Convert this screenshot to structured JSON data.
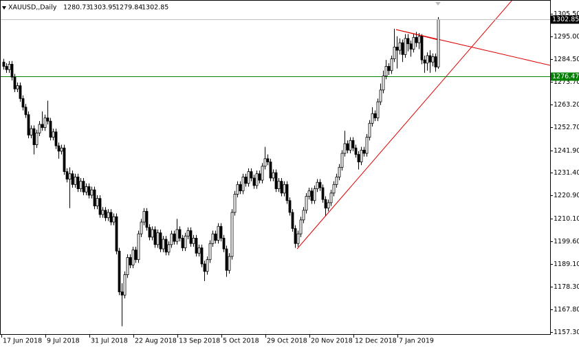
{
  "chart_data": {
    "type": "candlestick",
    "symbol": "XAUUSD,,Daily",
    "ylim": [
      1156.0,
      1311.9
    ],
    "yticks": [
      {
        "value": 1305.5,
        "label": "1305.50"
      },
      {
        "value": 1295.0,
        "label": "1295.00"
      },
      {
        "value": 1284.5,
        "label": "1284.50"
      },
      {
        "value": 1273.7,
        "label": "1273.70"
      },
      {
        "value": 1263.2,
        "label": "1263.20"
      },
      {
        "value": 1252.7,
        "label": "1252.70"
      },
      {
        "value": 1241.9,
        "label": "1241.90"
      },
      {
        "value": 1231.4,
        "label": "1231.40"
      },
      {
        "value": 1220.9,
        "label": "1220.90"
      },
      {
        "value": 1210.1,
        "label": "1210.10"
      },
      {
        "value": 1199.6,
        "label": "1199.60"
      },
      {
        "value": 1189.1,
        "label": "1189.10"
      },
      {
        "value": 1178.3,
        "label": "1178.30"
      },
      {
        "value": 1167.8,
        "label": "1167.80"
      },
      {
        "value": 1157.3,
        "label": "1157.30"
      }
    ],
    "hline": {
      "value": 1276.47,
      "color": "#008000"
    },
    "bull_color": "#ffffff",
    "bear_color": "#000000",
    "categories": [
      "17 Jun 2018",
      null,
      null,
      null,
      null,
      null,
      null,
      null,
      null,
      null,
      null,
      null,
      null,
      null,
      null,
      null,
      "9 Jul 2018",
      null,
      null,
      null,
      null,
      null,
      null,
      null,
      null,
      null,
      null,
      null,
      null,
      null,
      null,
      null,
      "31 Jul 2018",
      null,
      null,
      null,
      null,
      null,
      null,
      null,
      null,
      null,
      null,
      null,
      null,
      null,
      null,
      null,
      "22 Aug 2018",
      null,
      null,
      null,
      null,
      null,
      null,
      null,
      null,
      null,
      null,
      null,
      null,
      null,
      null,
      null,
      "13 Sep 2018",
      null,
      null,
      null,
      null,
      null,
      null,
      null,
      null,
      null,
      null,
      null,
      null,
      null,
      null,
      null,
      "5 Oct 2018",
      null,
      null,
      null,
      null,
      null,
      null,
      null,
      null,
      null,
      null,
      null,
      null,
      null,
      null,
      null,
      "29 Oct 2018",
      null,
      null,
      null,
      null,
      null,
      null,
      null,
      null,
      null,
      null,
      null,
      null,
      null,
      null,
      null,
      "20 Nov 2018",
      null,
      null,
      null,
      null,
      null,
      null,
      null,
      null,
      null,
      null,
      null,
      null,
      null,
      null,
      null,
      "12 Dec 2018",
      null,
      null,
      null,
      null,
      null,
      null,
      null,
      null,
      null,
      null,
      null,
      null,
      null,
      null,
      null,
      "7 Jan 2019",
      null,
      null,
      null,
      null,
      null,
      null,
      null,
      null,
      null,
      null,
      null,
      null,
      null,
      null
    ],
    "candles": [
      [
        1283.0,
        1284.5,
        1279.5,
        1281.0
      ],
      [
        1281.0,
        1282.5,
        1278.0,
        1279.5
      ],
      [
        1279.5,
        1283.5,
        1278.0,
        1282.0
      ],
      [
        1282.0,
        1283.5,
        1274.5,
        1276.0
      ],
      [
        1276.0,
        1277.5,
        1269.0,
        1270.5
      ],
      [
        1270.5,
        1273.5,
        1269.0,
        1272.0
      ],
      [
        1272.0,
        1273.5,
        1264.5,
        1266.0
      ],
      [
        1266.0,
        1267.5,
        1260.5,
        1262.0
      ],
      [
        1262.0,
        1263.5,
        1257.0,
        1258.5
      ],
      [
        1258.5,
        1260.0,
        1247.5,
        1249.0
      ],
      [
        1249.0,
        1253.5,
        1247.5,
        1252.0
      ],
      [
        1252.0,
        1253.5,
        1240.0,
        1244.5
      ],
      [
        1244.5,
        1251.5,
        1243.0,
        1250.0
      ],
      [
        1250.0,
        1255.5,
        1248.5,
        1254.0
      ],
      [
        1254.0,
        1260.0,
        1251.0,
        1252.5
      ],
      [
        1252.5,
        1258.5,
        1251.0,
        1257.0
      ],
      [
        1257.0,
        1265.0,
        1254.0,
        1255.5
      ],
      [
        1255.5,
        1257.0,
        1246.5,
        1248.0
      ],
      [
        1248.0,
        1252.0,
        1246.5,
        1250.5
      ],
      [
        1250.5,
        1252.0,
        1242.5,
        1244.0
      ],
      [
        1244.0,
        1245.5,
        1238.0,
        1241.5
      ],
      [
        1241.5,
        1244.5,
        1240.0,
        1243.0
      ],
      [
        1243.0,
        1244.5,
        1230.5,
        1232.0
      ],
      [
        1232.0,
        1233.5,
        1227.0,
        1228.5
      ],
      [
        1228.5,
        1234.0,
        1215.0,
        1231.0
      ],
      [
        1231.0,
        1232.5,
        1224.5,
        1226.0
      ],
      [
        1226.0,
        1231.0,
        1224.5,
        1229.5
      ],
      [
        1229.5,
        1231.0,
        1222.5,
        1224.0
      ],
      [
        1224.0,
        1229.0,
        1222.5,
        1227.5
      ],
      [
        1227.5,
        1229.0,
        1221.0,
        1222.5
      ],
      [
        1222.5,
        1226.5,
        1221.0,
        1225.0
      ],
      [
        1225.0,
        1226.5,
        1219.5,
        1221.0
      ],
      [
        1221.0,
        1225.0,
        1219.5,
        1223.5
      ],
      [
        1223.5,
        1225.0,
        1214.5,
        1216.0
      ],
      [
        1216.0,
        1221.0,
        1214.5,
        1219.5
      ],
      [
        1219.5,
        1221.0,
        1210.5,
        1212.0
      ],
      [
        1212.0,
        1215.5,
        1210.5,
        1214.0
      ],
      [
        1214.0,
        1215.5,
        1209.0,
        1210.5
      ],
      [
        1210.5,
        1214.5,
        1209.0,
        1213.0
      ],
      [
        1213.0,
        1214.5,
        1207.0,
        1208.5
      ],
      [
        1208.5,
        1212.5,
        1207.0,
        1211.0
      ],
      [
        1211.0,
        1212.5,
        1193.5,
        1195.0
      ],
      [
        1195.0,
        1196.5,
        1174.5,
        1176.0
      ],
      [
        1176.0,
        1180.0,
        1160.0,
        1174.5
      ],
      [
        1174.5,
        1185.5,
        1173.0,
        1184.0
      ],
      [
        1184.0,
        1193.5,
        1182.5,
        1192.0
      ],
      [
        1192.0,
        1193.5,
        1187.0,
        1188.5
      ],
      [
        1188.5,
        1197.0,
        1187.0,
        1195.5
      ],
      [
        1195.5,
        1197.0,
        1189.5,
        1191.0
      ],
      [
        1191.0,
        1204.5,
        1189.5,
        1203.0
      ],
      [
        1203.0,
        1210.0,
        1201.5,
        1208.5
      ],
      [
        1208.5,
        1215.0,
        1207.0,
        1213.5
      ],
      [
        1213.5,
        1215.0,
        1204.5,
        1206.0
      ],
      [
        1206.0,
        1207.5,
        1200.0,
        1201.5
      ],
      [
        1201.5,
        1206.5,
        1200.0,
        1205.0
      ],
      [
        1205.0,
        1206.5,
        1196.5,
        1198.0
      ],
      [
        1198.0,
        1205.0,
        1196.5,
        1203.5
      ],
      [
        1203.5,
        1205.0,
        1194.5,
        1196.0
      ],
      [
        1196.0,
        1202.0,
        1194.5,
        1200.5
      ],
      [
        1200.5,
        1202.0,
        1193.0,
        1194.5
      ],
      [
        1194.5,
        1199.5,
        1193.0,
        1198.0
      ],
      [
        1198.0,
        1204.5,
        1196.5,
        1203.0
      ],
      [
        1203.0,
        1204.5,
        1198.0,
        1199.5
      ],
      [
        1199.5,
        1210.0,
        1198.0,
        1205.0
      ],
      [
        1205.0,
        1206.5,
        1199.5,
        1201.0
      ],
      [
        1201.0,
        1202.5,
        1195.0,
        1196.5
      ],
      [
        1196.5,
        1203.5,
        1195.0,
        1202.0
      ],
      [
        1202.0,
        1206.0,
        1200.5,
        1204.5
      ],
      [
        1204.5,
        1206.0,
        1197.0,
        1198.5
      ],
      [
        1198.5,
        1202.5,
        1197.0,
        1201.0
      ],
      [
        1201.0,
        1202.5,
        1192.5,
        1194.0
      ],
      [
        1194.0,
        1198.0,
        1192.5,
        1196.5
      ],
      [
        1196.5,
        1198.0,
        1187.5,
        1189.0
      ],
      [
        1189.0,
        1190.5,
        1181.0,
        1185.5
      ],
      [
        1185.5,
        1192.5,
        1184.0,
        1191.0
      ],
      [
        1191.0,
        1200.0,
        1189.5,
        1198.5
      ],
      [
        1198.5,
        1204.5,
        1197.0,
        1203.0
      ],
      [
        1203.0,
        1204.5,
        1198.5,
        1200.0
      ],
      [
        1200.0,
        1208.0,
        1198.5,
        1206.5
      ],
      [
        1206.5,
        1208.0,
        1199.5,
        1201.0
      ],
      [
        1201.0,
        1202.5,
        1194.5,
        1196.0
      ],
      [
        1196.0,
        1197.5,
        1183.0,
        1186.0
      ],
      [
        1186.0,
        1194.0,
        1184.5,
        1192.5
      ],
      [
        1192.5,
        1214.5,
        1191.0,
        1213.0
      ],
      [
        1213.0,
        1223.0,
        1211.5,
        1221.5
      ],
      [
        1221.5,
        1227.5,
        1220.0,
        1226.0
      ],
      [
        1226.0,
        1227.5,
        1221.5,
        1223.0
      ],
      [
        1223.0,
        1231.0,
        1221.5,
        1229.5
      ],
      [
        1229.5,
        1231.0,
        1225.0,
        1226.5
      ],
      [
        1226.5,
        1233.5,
        1225.0,
        1232.0
      ],
      [
        1232.0,
        1233.5,
        1227.5,
        1229.0
      ],
      [
        1229.0,
        1230.5,
        1224.0,
        1225.5
      ],
      [
        1225.5,
        1232.5,
        1224.0,
        1231.0
      ],
      [
        1231.0,
        1232.5,
        1226.5,
        1228.0
      ],
      [
        1228.0,
        1236.0,
        1226.5,
        1234.5
      ],
      [
        1234.5,
        1243.5,
        1233.0,
        1238.0
      ],
      [
        1238.0,
        1240.0,
        1235.0,
        1236.5
      ],
      [
        1236.5,
        1238.0,
        1227.5,
        1229.0
      ],
      [
        1229.0,
        1233.0,
        1227.5,
        1231.5
      ],
      [
        1231.5,
        1233.0,
        1222.5,
        1224.0
      ],
      [
        1224.0,
        1229.0,
        1222.5,
        1227.5
      ],
      [
        1227.5,
        1229.0,
        1220.5,
        1222.0
      ],
      [
        1222.0,
        1227.5,
        1220.5,
        1226.0
      ],
      [
        1226.0,
        1227.5,
        1217.0,
        1218.5
      ],
      [
        1218.5,
        1220.0,
        1211.5,
        1213.0
      ],
      [
        1213.0,
        1214.5,
        1204.0,
        1205.5
      ],
      [
        1205.5,
        1207.0,
        1196.5,
        1198.5
      ],
      [
        1198.5,
        1204.5,
        1197.0,
        1203.0
      ],
      [
        1203.0,
        1211.0,
        1201.5,
        1209.5
      ],
      [
        1209.5,
        1215.5,
        1208.0,
        1214.0
      ],
      [
        1214.0,
        1222.0,
        1212.5,
        1220.5
      ],
      [
        1220.5,
        1224.5,
        1219.0,
        1223.0
      ],
      [
        1223.0,
        1224.5,
        1217.0,
        1218.5
      ],
      [
        1218.5,
        1225.5,
        1217.0,
        1224.0
      ],
      [
        1224.0,
        1228.5,
        1222.5,
        1227.0
      ],
      [
        1227.0,
        1228.5,
        1223.0,
        1224.5
      ],
      [
        1224.5,
        1226.0,
        1217.5,
        1219.0
      ],
      [
        1219.0,
        1220.5,
        1211.5,
        1215.0
      ],
      [
        1215.0,
        1219.0,
        1213.5,
        1217.5
      ],
      [
        1217.5,
        1223.5,
        1216.0,
        1222.0
      ],
      [
        1222.0,
        1227.5,
        1220.5,
        1226.0
      ],
      [
        1226.0,
        1231.0,
        1224.5,
        1229.5
      ],
      [
        1229.5,
        1235.5,
        1228.0,
        1234.0
      ],
      [
        1234.0,
        1242.0,
        1232.5,
        1240.5
      ],
      [
        1240.5,
        1251.0,
        1239.0,
        1245.0
      ],
      [
        1245.0,
        1246.5,
        1240.5,
        1242.0
      ],
      [
        1242.0,
        1248.0,
        1240.5,
        1246.5
      ],
      [
        1246.5,
        1248.0,
        1241.5,
        1243.0
      ],
      [
        1243.0,
        1244.5,
        1238.5,
        1240.0
      ],
      [
        1240.0,
        1241.5,
        1233.0,
        1236.5
      ],
      [
        1236.5,
        1243.5,
        1235.0,
        1242.0
      ],
      [
        1242.0,
        1243.5,
        1239.0,
        1240.5
      ],
      [
        1240.5,
        1249.5,
        1239.0,
        1248.0
      ],
      [
        1248.0,
        1256.0,
        1246.5,
        1254.5
      ],
      [
        1254.5,
        1262.0,
        1253.0,
        1259.0
      ],
      [
        1259.0,
        1260.5,
        1255.5,
        1257.0
      ],
      [
        1257.0,
        1266.0,
        1255.5,
        1264.5
      ],
      [
        1264.5,
        1273.0,
        1263.0,
        1270.0
      ],
      [
        1270.0,
        1279.0,
        1268.5,
        1276.5
      ],
      [
        1276.5,
        1284.0,
        1275.0,
        1281.0
      ],
      [
        1281.0,
        1282.5,
        1277.0,
        1279.0
      ],
      [
        1279.0,
        1286.0,
        1277.5,
        1284.5
      ],
      [
        1284.5,
        1298.5,
        1283.0,
        1290.0
      ],
      [
        1290.0,
        1295.0,
        1280.0,
        1288.5
      ],
      [
        1288.5,
        1294.0,
        1286.5,
        1292.0
      ],
      [
        1292.0,
        1293.5,
        1283.0,
        1286.5
      ],
      [
        1286.5,
        1296.0,
        1285.0,
        1294.0
      ],
      [
        1294.0,
        1296.0,
        1288.0,
        1291.5
      ],
      [
        1291.5,
        1293.0,
        1285.5,
        1289.0
      ],
      [
        1289.0,
        1296.0,
        1287.5,
        1294.5
      ],
      [
        1294.5,
        1297.0,
        1290.0,
        1292.0
      ],
      [
        1292.0,
        1296.5,
        1289.0,
        1295.0
      ],
      [
        1295.0,
        1296.0,
        1282.0,
        1284.0
      ],
      [
        1284.0,
        1286.0,
        1278.0,
        1282.5
      ],
      [
        1282.5,
        1287.5,
        1279.0,
        1286.0
      ],
      [
        1286.0,
        1288.5,
        1278.0,
        1283.0
      ],
      [
        1283.0,
        1287.0,
        1281.0,
        1285.5
      ],
      [
        1285.5,
        1287.0,
        1278.5,
        1280.7
      ],
      [
        1280.73,
        1303.95,
        1279.84,
        1302.85
      ]
    ]
  }
}
